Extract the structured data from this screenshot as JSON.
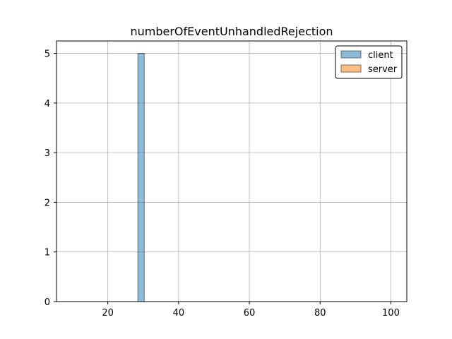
{
  "chart_data": {
    "type": "bar",
    "title": "numberOfEventUnhandledRejection",
    "xlabel": "",
    "ylabel": "",
    "xlim": [
      5.5,
      104.5
    ],
    "ylim": [
      0,
      5.25
    ],
    "xticks": [
      20,
      40,
      60,
      80,
      100
    ],
    "yticks": [
      0,
      1,
      2,
      3,
      4,
      5
    ],
    "grid": true,
    "legend": {
      "placement": "top-right"
    },
    "series": [
      {
        "name": "client",
        "color": "#1f77b4",
        "alpha": 0.5,
        "bins": [
          {
            "x0": 10,
            "x1": 28.5,
            "count": 0
          },
          {
            "x0": 28.5,
            "x1": 30.3,
            "count": 5
          },
          {
            "x0": 30.3,
            "x1": 100,
            "count": 0
          }
        ]
      },
      {
        "name": "server",
        "color": "#ff7f0e",
        "alpha": 0.5,
        "bins": []
      }
    ]
  }
}
